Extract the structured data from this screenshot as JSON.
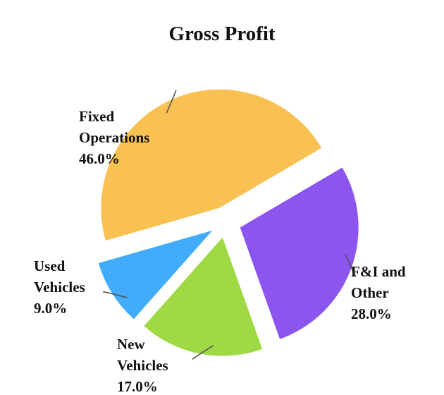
{
  "chart_data": {
    "type": "pie",
    "title": "Gross Profit",
    "slices": [
      {
        "label": [
          "Fixed",
          "Operations"
        ],
        "percent_label": "46.0%",
        "value": 46.0,
        "color": "#F9C152"
      },
      {
        "label": [
          "F&I and",
          "Other"
        ],
        "percent_label": "28.0%",
        "value": 28.0,
        "color": "#8B55EE"
      },
      {
        "label": [
          "New",
          "Vehicles"
        ],
        "percent_label": "17.0%",
        "value": 17.0,
        "color": "#9FDA45"
      },
      {
        "label": [
          "Used",
          "Vehicles"
        ],
        "percent_label": "9.0%",
        "value": 9.0,
        "color": "#41ACFB"
      }
    ],
    "exploded": true,
    "legend": "none"
  }
}
